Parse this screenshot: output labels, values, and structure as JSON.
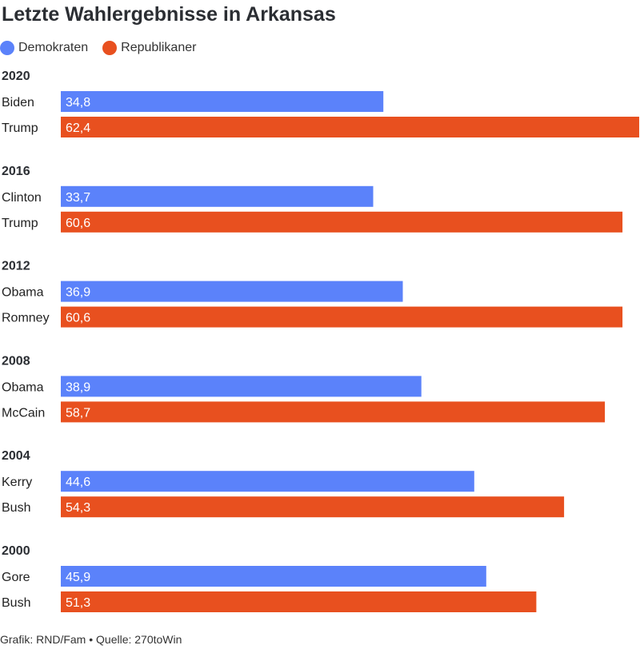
{
  "chart_data": {
    "type": "bar",
    "orientation": "horizontal",
    "title": "Letzte Wahlergebnisse in Arkansas",
    "legend": {
      "placement": "top-left",
      "items": [
        {
          "name": "Demokraten",
          "color": "#5b82fa"
        },
        {
          "name": "Republikaner",
          "color": "#e8501f"
        }
      ]
    },
    "xlim": [
      0,
      62.4
    ],
    "grid": false,
    "groups": [
      {
        "year": "2020",
        "bars": [
          {
            "candidate": "Biden",
            "party": "Demokraten",
            "value": 34.8,
            "label": "34,8"
          },
          {
            "candidate": "Trump",
            "party": "Republikaner",
            "value": 62.4,
            "label": "62,4"
          }
        ]
      },
      {
        "year": "2016",
        "bars": [
          {
            "candidate": "Clinton",
            "party": "Demokraten",
            "value": 33.7,
            "label": "33,7"
          },
          {
            "candidate": "Trump",
            "party": "Republikaner",
            "value": 60.6,
            "label": "60,6"
          }
        ]
      },
      {
        "year": "2012",
        "bars": [
          {
            "candidate": "Obama",
            "party": "Demokraten",
            "value": 36.9,
            "label": "36,9"
          },
          {
            "candidate": "Romney",
            "party": "Republikaner",
            "value": 60.6,
            "label": "60,6"
          }
        ]
      },
      {
        "year": "2008",
        "bars": [
          {
            "candidate": "Obama",
            "party": "Demokraten",
            "value": 38.9,
            "label": "38,9"
          },
          {
            "candidate": "McCain",
            "party": "Republikaner",
            "value": 58.7,
            "label": "58,7"
          }
        ]
      },
      {
        "year": "2004",
        "bars": [
          {
            "candidate": "Kerry",
            "party": "Demokraten",
            "value": 44.6,
            "label": "44,6"
          },
          {
            "candidate": "Bush",
            "party": "Republikaner",
            "value": 54.3,
            "label": "54,3"
          }
        ]
      },
      {
        "year": "2000",
        "bars": [
          {
            "candidate": "Gore",
            "party": "Demokraten",
            "value": 45.9,
            "label": "45,9"
          },
          {
            "candidate": "Bush",
            "party": "Republikaner",
            "value": 51.3,
            "label": "51,3"
          }
        ]
      }
    ]
  },
  "footer": "Grafik: RND/Fam • Quelle: 270toWin"
}
